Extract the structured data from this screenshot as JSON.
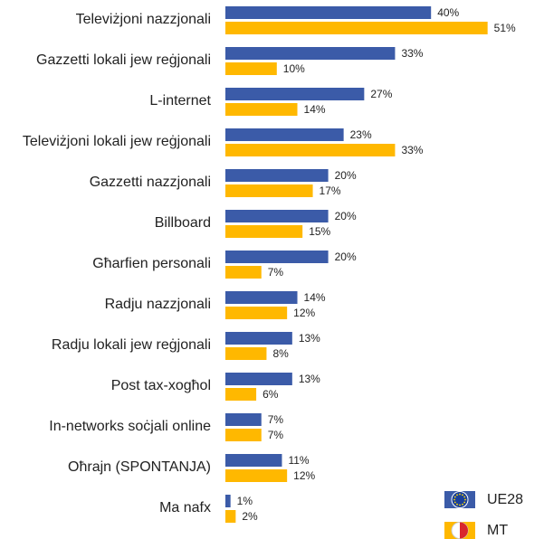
{
  "chart_data": {
    "type": "bar",
    "orientation": "horizontal",
    "categories": [
      "Televiżjoni nazzjonali",
      "Gazzetti lokali jew reġjonali",
      "L-internet",
      "Televiżjoni lokali jew reġjonali",
      "Gazzetti nazzjonali",
      "Billboard",
      "Għarfien personali",
      "Radju nazzjonali",
      "Radju lokali jew reġjonali",
      "Post tax-xogħol",
      "In-networks soċjali online",
      "Oħrajn (SPONTANJA)",
      "Ma nafx"
    ],
    "series": [
      {
        "name": "UE28",
        "color": "#3b5ba8",
        "values": [
          40,
          33,
          27,
          23,
          20,
          20,
          20,
          14,
          13,
          13,
          7,
          11,
          1
        ],
        "value_labels": [
          "40%",
          "33%",
          "27%",
          "23%",
          "20%",
          "20%",
          "20%",
          "14%",
          "13%",
          "13%",
          "7%",
          "11%",
          "1%"
        ]
      },
      {
        "name": "MT",
        "color": "#ffb800",
        "values": [
          51,
          10,
          14,
          33,
          17,
          15,
          7,
          12,
          8,
          6,
          7,
          12,
          2
        ],
        "value_labels": [
          "51%",
          "10%",
          "14%",
          "33%",
          "17%",
          "15%",
          "7%",
          "12%",
          "8%",
          "6%",
          "7%",
          "12%",
          "2%"
        ]
      }
    ],
    "legend": "bottom-right"
  }
}
